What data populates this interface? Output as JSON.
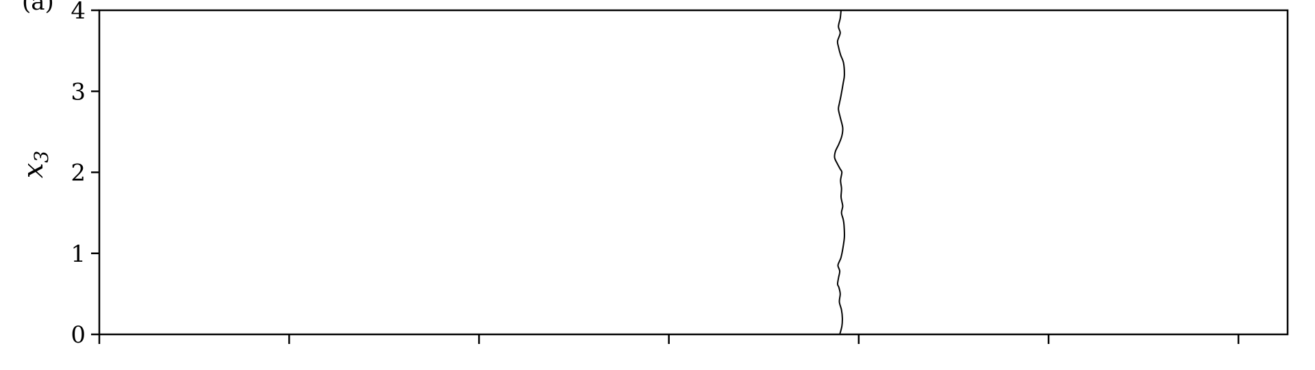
{
  "chart_data": {
    "type": "line",
    "panel_label": "(a)",
    "title": "",
    "xlabel": "",
    "ylabel_main": "x",
    "ylabel_sub": "3",
    "ylim": [
      0,
      4
    ],
    "yticks": [
      0,
      1,
      2,
      3,
      4
    ],
    "xlim": [
      0,
      1
    ],
    "xticks_count": 7,
    "xtick_labels": [],
    "grid": false,
    "line_color": "#000000",
    "series": [
      {
        "x": [
          0.6231,
          0.6249,
          0.6253,
          0.6246,
          0.6228,
          0.6235,
          0.6224,
          0.6213,
          0.6221,
          0.6231,
          0.6216,
          0.6231,
          0.6242,
          0.6256,
          0.627,
          0.6267,
          0.626,
          0.6246,
          0.6256,
          0.6249,
          0.6242,
          0.6246,
          0.6238,
          0.6249,
          0.6235,
          0.6213,
          0.6188,
          0.6195,
          0.6224,
          0.6249,
          0.6256,
          0.6235,
          0.622,
          0.6228,
          0.6242,
          0.626,
          0.627,
          0.6263,
          0.6238,
          0.622,
          0.6213,
          0.6235,
          0.622,
          0.6235,
          0.6242
        ],
        "y": [
          0.0,
          0.1,
          0.2,
          0.3,
          0.4,
          0.5,
          0.58,
          0.62,
          0.7,
          0.78,
          0.85,
          0.91,
          0.95,
          1.05,
          1.2,
          1.35,
          1.42,
          1.5,
          1.58,
          1.64,
          1.7,
          1.8,
          1.9,
          2.0,
          2.04,
          2.1,
          2.18,
          2.26,
          2.35,
          2.45,
          2.55,
          2.68,
          2.78,
          2.85,
          2.95,
          3.1,
          3.2,
          3.35,
          3.45,
          3.55,
          3.62,
          3.72,
          3.8,
          3.9,
          4.0
        ]
      }
    ]
  }
}
